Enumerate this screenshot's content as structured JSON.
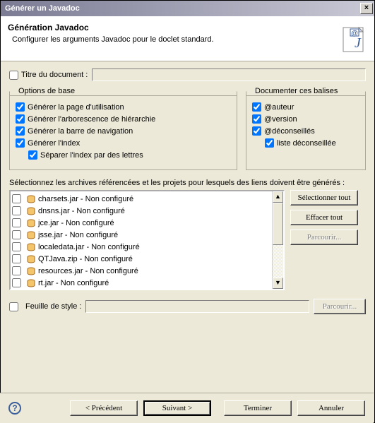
{
  "titlebar": {
    "title": "Générer un Javadoc",
    "close_glyph": "×"
  },
  "banner": {
    "heading": "Génération Javadoc",
    "subheading": "Configurer les arguments Javadoc pour le doclet standard.",
    "icon_j": "J",
    "icon_at": "@"
  },
  "doc_title": {
    "label": "Titre du document :",
    "checked": false,
    "value": ""
  },
  "groups": {
    "basic": {
      "legend": "Options de base",
      "items": [
        {
          "label": "Générer la page d'utilisation",
          "checked": true,
          "name": "gen-usage"
        },
        {
          "label": "Générer l'arborescence de hiérarchie",
          "checked": true,
          "name": "gen-tree"
        },
        {
          "label": "Générer la barre de navigation",
          "checked": true,
          "name": "gen-nav"
        },
        {
          "label": "Générer l'index",
          "checked": true,
          "name": "gen-index"
        },
        {
          "label": "Séparer l'index par des lettres",
          "checked": true,
          "name": "split-index",
          "indent": true
        }
      ]
    },
    "tags": {
      "legend": "Documenter ces balises",
      "items": [
        {
          "label": "@auteur",
          "checked": true,
          "name": "tag-author"
        },
        {
          "label": "@version",
          "checked": true,
          "name": "tag-version"
        },
        {
          "label": "@déconseillés",
          "checked": true,
          "name": "tag-deprec"
        },
        {
          "label": "liste déconseillée",
          "checked": true,
          "name": "tag-deprec-list",
          "indent": true
        }
      ]
    }
  },
  "archives": {
    "label": "Sélectionnez les archives référencées et les projets pour lesquels des liens doivent être générés :",
    "items": [
      {
        "label": "charsets.jar - Non configuré",
        "checked": false
      },
      {
        "label": "dnsns.jar - Non configuré",
        "checked": false
      },
      {
        "label": "jce.jar - Non configuré",
        "checked": false
      },
      {
        "label": "jsse.jar - Non configuré",
        "checked": false
      },
      {
        "label": "localedata.jar - Non configuré",
        "checked": false
      },
      {
        "label": "QTJava.zip - Non configuré",
        "checked": false
      },
      {
        "label": "resources.jar - Non configuré",
        "checked": false
      },
      {
        "label": "rt.jar - Non configuré",
        "checked": false
      }
    ],
    "buttons": {
      "select_all": "Sélectionner tout",
      "clear_all": "Effacer tout",
      "browse": "Parcourir..."
    }
  },
  "stylesheet": {
    "label": "Feuille de style :",
    "checked": false,
    "value": "",
    "browse": "Parcourir..."
  },
  "footer": {
    "back": "< Précédent",
    "next": "Suivant >",
    "finish": "Terminer",
    "cancel": "Annuler",
    "help": "?"
  },
  "colors": {
    "jar_fill": "#f5c56b",
    "jar_stroke": "#a56a1f"
  }
}
